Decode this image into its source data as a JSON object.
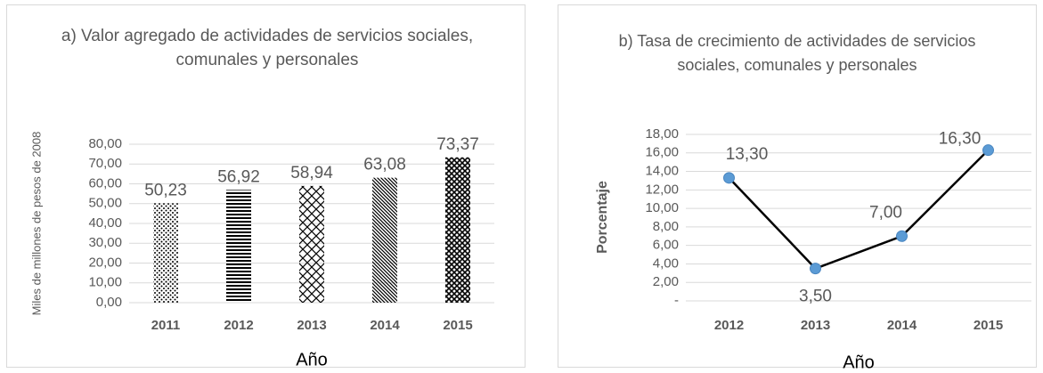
{
  "chart_data": [
    {
      "type": "bar",
      "title": "a) Valor agregado de actividades de servicios sociales, comunales y personales",
      "y_label": "Miles de millones de pesos de 2008",
      "x_label": "Año",
      "categories": [
        "2011",
        "2012",
        "2013",
        "2014",
        "2015"
      ],
      "values": [
        50.23,
        56.92,
        58.94,
        63.08,
        73.37
      ],
      "value_labels": [
        "50,23",
        "56,92",
        "58,94",
        "63,08",
        "73,37"
      ],
      "patterns": [
        "dots",
        "horizontal",
        "cross",
        "diagonal",
        "diamond"
      ],
      "color": "#000000",
      "ylim": [
        0,
        80
      ],
      "yticks": [
        {
          "value": 0,
          "label": "0,00"
        },
        {
          "value": 10,
          "label": "10,00"
        },
        {
          "value": 20,
          "label": "20,00"
        },
        {
          "value": 30,
          "label": "30,00"
        },
        {
          "value": 40,
          "label": "40,00"
        },
        {
          "value": 50,
          "label": "50,00"
        },
        {
          "value": 60,
          "label": "60,00"
        },
        {
          "value": 70,
          "label": "70,00"
        },
        {
          "value": 80,
          "label": "80,00"
        }
      ],
      "grid": true
    },
    {
      "type": "line",
      "title": "b) Tasa de crecimiento de actividades de servicios sociales, comunales y personales",
      "y_label": "Porcentaje",
      "x_label": "Año",
      "categories": [
        "2012",
        "2013",
        "2014",
        "2015"
      ],
      "values": [
        13.3,
        3.5,
        7.0,
        16.3
      ],
      "value_labels": [
        "13,30",
        "3,50",
        "7,00",
        "16,30"
      ],
      "color": "#000000",
      "marker_color": "#5b9bd5",
      "ylim": [
        0,
        18
      ],
      "yticks": [
        {
          "value": 0,
          "label": "-"
        },
        {
          "value": 2,
          "label": "2,00"
        },
        {
          "value": 4,
          "label": "4,00"
        },
        {
          "value": 6,
          "label": "6,00"
        },
        {
          "value": 8,
          "label": "8,00"
        },
        {
          "value": 10,
          "label": "10,00"
        },
        {
          "value": 12,
          "label": "12,00"
        },
        {
          "value": 14,
          "label": "14,00"
        },
        {
          "value": 16,
          "label": "16,00"
        },
        {
          "value": 18,
          "label": "18,00"
        }
      ],
      "grid": true
    }
  ]
}
